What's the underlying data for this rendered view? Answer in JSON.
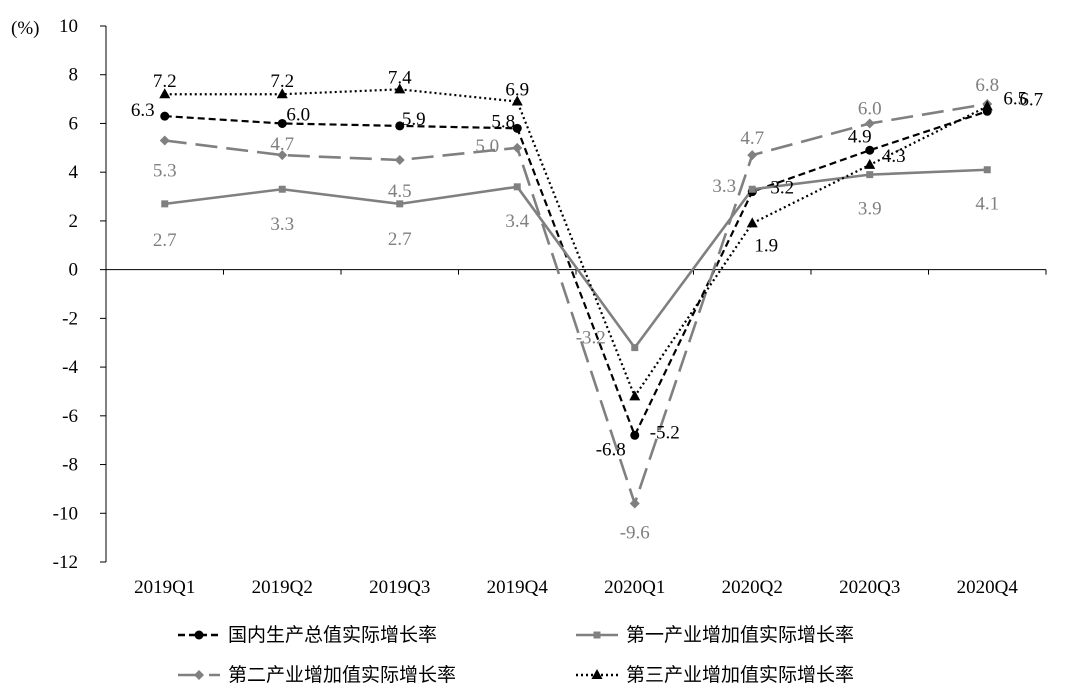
{
  "chart_data": {
    "type": "line",
    "ylabel": "(%)",
    "ylim": [
      -12,
      10
    ],
    "ytick_step": 2,
    "ytick_labels": [
      "-12",
      "-10",
      "-8",
      "-6",
      "-4",
      "-2",
      "0",
      "2",
      "4",
      "6",
      "8",
      "10"
    ],
    "categories": [
      "2019Q1",
      "2019Q2",
      "2019Q3",
      "2019Q4",
      "2020Q1",
      "2020Q2",
      "2020Q3",
      "2020Q4"
    ],
    "legend_position": "bottom",
    "series": [
      {
        "name": "国内生产总值实际增长率",
        "values": [
          6.3,
          6.0,
          5.9,
          5.8,
          -6.8,
          3.2,
          4.9,
          6.5
        ],
        "labels": [
          "6.3",
          "6.0",
          "5.9",
          "5.8",
          "-6.8",
          "3.2",
          "4.9",
          "6.5"
        ],
        "color": "#000000",
        "dash": "short-dash",
        "marker": "circle"
      },
      {
        "name": "第一产业增加值实际增长率",
        "values": [
          2.7,
          3.3,
          2.7,
          3.4,
          -3.2,
          3.3,
          3.9,
          4.1
        ],
        "labels": [
          "2.7",
          "3.3",
          "2.7",
          "3.4",
          "-3.2",
          "3.3",
          "3.9",
          "4.1"
        ],
        "color": "#808080",
        "dash": "solid",
        "marker": "square"
      },
      {
        "name": "第二产业增加值实际增长率",
        "values": [
          5.3,
          4.7,
          4.5,
          5.0,
          -9.6,
          4.7,
          6.0,
          6.8
        ],
        "labels": [
          "5.3",
          "4.7",
          "4.5",
          "5.0",
          "-9.6",
          "4.7",
          "6.0",
          "6.8"
        ],
        "color": "#808080",
        "dash": "long-dash",
        "marker": "diamond"
      },
      {
        "name": "第三产业增加值实际增长率",
        "values": [
          7.2,
          7.2,
          7.4,
          6.9,
          -5.2,
          1.9,
          4.3,
          6.7
        ],
        "labels": [
          "7.2",
          "7.2",
          "7.4",
          "6.9",
          "-5.2",
          "1.9",
          "4.3",
          "6.7"
        ],
        "color": "#000000",
        "dash": "dotted",
        "marker": "triangle"
      }
    ]
  }
}
